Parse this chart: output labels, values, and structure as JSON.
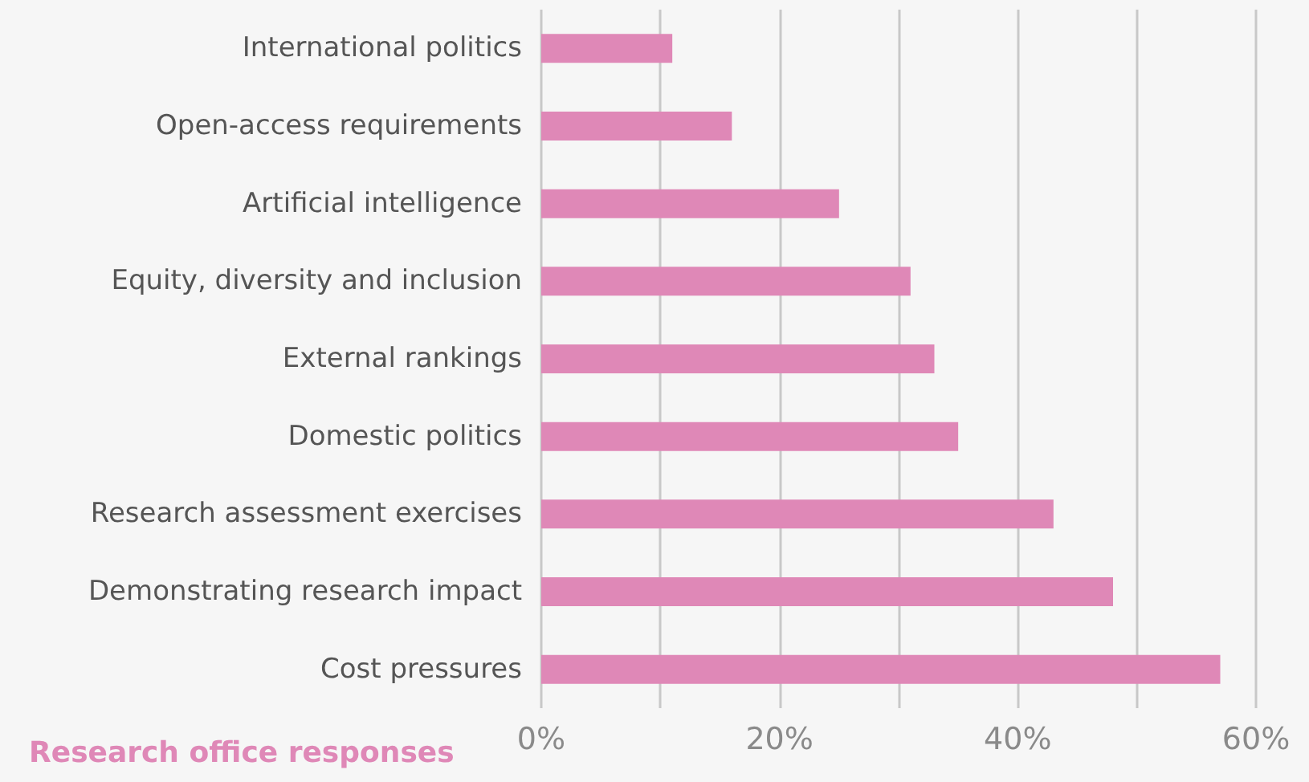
{
  "chart_data": {
    "type": "bar",
    "orientation": "horizontal",
    "categories": [
      "International politics",
      "Open-access requirements",
      "Artificial intelligence",
      "Equity, diversity and inclusion",
      "External rankings",
      "Domestic politics",
      "Research assessment exercises",
      "Demonstrating research impact",
      "Cost pressures"
    ],
    "series": [
      {
        "name": "Research office responses",
        "color": "#df88b7",
        "values": [
          11,
          16,
          25,
          31,
          33,
          35,
          43,
          48,
          57
        ]
      }
    ],
    "xlim": [
      0,
      60
    ],
    "xticks": [
      {
        "value": 0,
        "label": "0%"
      },
      {
        "value": 10,
        "label": null
      },
      {
        "value": 20,
        "label": "20%"
      },
      {
        "value": 30,
        "label": null
      },
      {
        "value": 40,
        "label": "40%"
      },
      {
        "value": 50,
        "label": null
      },
      {
        "value": 60,
        "label": "60%"
      }
    ],
    "grid": "x",
    "legend": "bottom left"
  }
}
